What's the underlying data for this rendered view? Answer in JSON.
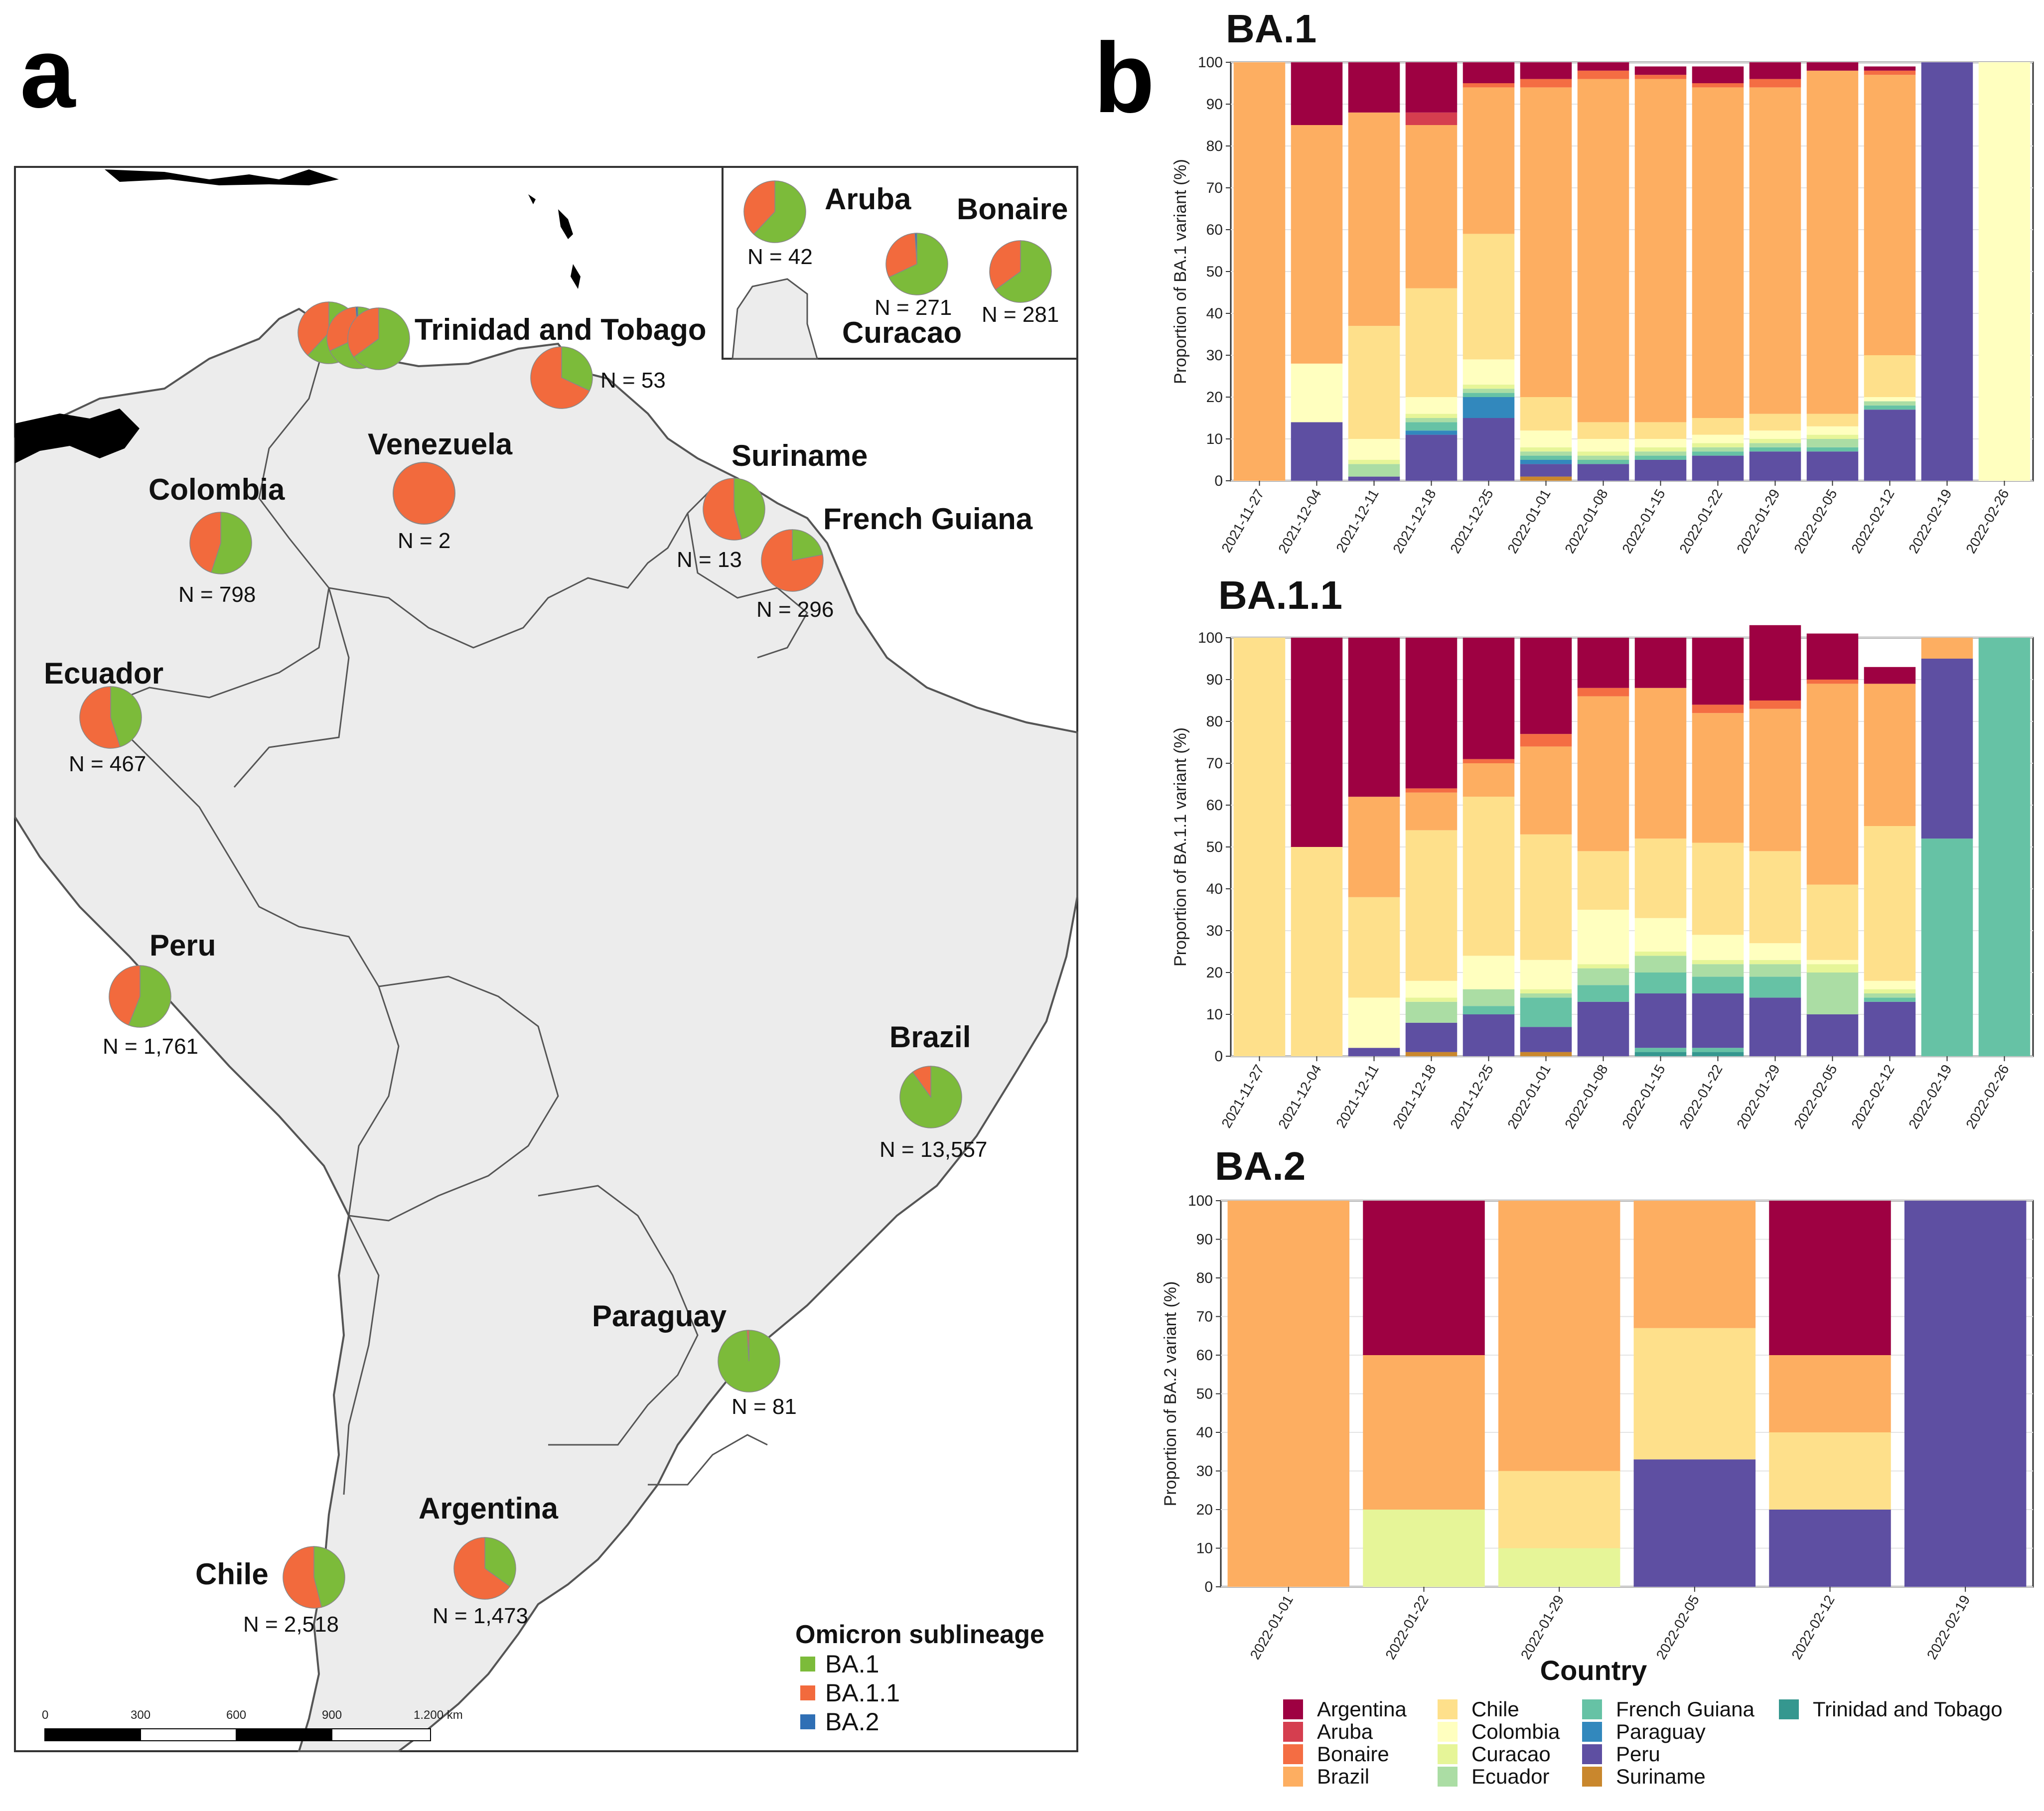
{
  "panel_a": {
    "letter": "a",
    "inset_countries": [
      {
        "name": "Aruba",
        "n_text": "N = 42",
        "ba1": 0.62,
        "ba11": 0.38,
        "ba2": 0.0
      },
      {
        "name": "Curacao",
        "n_text": "N = 271",
        "ba1": 0.68,
        "ba11": 0.31,
        "ba2": 0.01
      },
      {
        "name": "Bonaire",
        "n_text": "N = 281",
        "ba1": 0.65,
        "ba11": 0.35,
        "ba2": 0.0
      }
    ],
    "countries": [
      {
        "name": "Trinidad and Tobago",
        "n_text": "N = 53",
        "ba1": 0.32,
        "ba11": 0.68,
        "ba2": 0.0
      },
      {
        "name": "Venezuela",
        "n_text": "N = 2",
        "ba1": 0.0,
        "ba11": 1.0,
        "ba2": 0.0
      },
      {
        "name": "Colombia",
        "n_text": "N = 798",
        "ba1": 0.55,
        "ba11": 0.45,
        "ba2": 0.0
      },
      {
        "name": "Suriname",
        "n_text": "N = 13",
        "ba1": 0.46,
        "ba11": 0.54,
        "ba2": 0.0
      },
      {
        "name": "French Guiana",
        "n_text": "N = 296",
        "ba1": 0.22,
        "ba11": 0.78,
        "ba2": 0.0
      },
      {
        "name": "Ecuador",
        "n_text": "N = 467",
        "ba1": 0.45,
        "ba11": 0.55,
        "ba2": 0.0
      },
      {
        "name": "Peru",
        "n_text": "N = 1,761",
        "ba1": 0.56,
        "ba11": 0.44,
        "ba2": 0.0
      },
      {
        "name": "Brazil",
        "n_text": "N = 13,557",
        "ba1": 0.9,
        "ba11": 0.1,
        "ba2": 0.0
      },
      {
        "name": "Paraguay",
        "n_text": "N = 81",
        "ba1": 0.99,
        "ba11": 0.01,
        "ba2": 0.0
      },
      {
        "name": "Argentina",
        "n_text": "N = 1,473",
        "ba1": 0.35,
        "ba11": 0.65,
        "ba2": 0.0
      },
      {
        "name": "Chile",
        "n_text": "N = 2,518",
        "ba1": 0.46,
        "ba11": 0.54,
        "ba2": 0.0
      }
    ],
    "legend": {
      "title": "Omicron sublineage",
      "items": [
        {
          "label": "BA.1",
          "color": "#7cbb3a"
        },
        {
          "label": "BA.1.1",
          "color": "#f26a3d"
        },
        {
          "label": "BA.2",
          "color": "#2f6fb5"
        }
      ]
    },
    "scale_bar": {
      "labels": [
        "0",
        "300",
        "600",
        "900",
        "1.200 km"
      ]
    }
  },
  "panel_b": {
    "letter": "b",
    "x_axis_label": "Country",
    "legend": [
      {
        "label": "Argentina",
        "color": "#9e0142"
      },
      {
        "label": "Aruba",
        "color": "#d53e4f"
      },
      {
        "label": "Bonaire",
        "color": "#f46d43"
      },
      {
        "label": "Brazil",
        "color": "#fdae61"
      },
      {
        "label": "Chile",
        "color": "#fee08b"
      },
      {
        "label": "Colombia",
        "color": "#ffffbf"
      },
      {
        "label": "Curacao",
        "color": "#e6f598"
      },
      {
        "label": "Ecuador",
        "color": "#abdda4"
      },
      {
        "label": "French Guiana",
        "color": "#66c2a5"
      },
      {
        "label": "Paraguay",
        "color": "#3288bd"
      },
      {
        "label": "Peru",
        "color": "#5e4fa2"
      },
      {
        "label": "Suriname",
        "color": "#c9872d"
      },
      {
        "label": "Trinidad and Tobago",
        "color": "#35978f"
      }
    ]
  },
  "chart_data": [
    {
      "type": "bar",
      "stacked": true,
      "title": "BA.1",
      "ylabel": "Proportion of BA.1 variant (%)",
      "ylim": [
        0,
        100
      ],
      "yticks": [
        0,
        10,
        20,
        30,
        40,
        50,
        60,
        70,
        80,
        90,
        100
      ],
      "categories": [
        "2021-11-27",
        "2021-12-04",
        "2021-12-11",
        "2021-12-18",
        "2021-12-25",
        "2022-01-01",
        "2022-01-08",
        "2022-01-15",
        "2022-01-22",
        "2022-01-29",
        "2022-02-05",
        "2022-02-12",
        "2022-02-19",
        "2022-02-26"
      ],
      "series": [
        {
          "name": "Suriname",
          "values": [
            0,
            0,
            0,
            0,
            0,
            1,
            0,
            0,
            0,
            0,
            0,
            0,
            0,
            0
          ]
        },
        {
          "name": "Peru",
          "values": [
            0,
            14,
            1,
            11,
            15,
            3,
            4,
            5,
            6,
            7,
            7,
            17,
            100,
            0
          ]
        },
        {
          "name": "Paraguay",
          "values": [
            0,
            0,
            0,
            1,
            5,
            1,
            0,
            0,
            0,
            0,
            0,
            0,
            0,
            0
          ]
        },
        {
          "name": "French Guiana",
          "values": [
            0,
            0,
            0,
            2,
            1,
            1,
            1,
            1,
            1,
            1,
            1,
            1,
            0,
            0
          ]
        },
        {
          "name": "Ecuador",
          "values": [
            0,
            0,
            3,
            1,
            1,
            1,
            1,
            1,
            1,
            1,
            2,
            1,
            0,
            0
          ]
        },
        {
          "name": "Curacao",
          "values": [
            0,
            0,
            1,
            1,
            1,
            1,
            1,
            1,
            1,
            1,
            1,
            0,
            0,
            0
          ]
        },
        {
          "name": "Colombia",
          "values": [
            0,
            14,
            5,
            4,
            6,
            4,
            3,
            2,
            2,
            2,
            2,
            1,
            0,
            100
          ]
        },
        {
          "name": "Chile",
          "values": [
            0,
            0,
            27,
            26,
            30,
            8,
            4,
            4,
            4,
            4,
            3,
            10,
            0,
            0
          ]
        },
        {
          "name": "Brazil",
          "values": [
            100,
            57,
            51,
            39,
            35,
            74,
            82,
            82,
            79,
            78,
            82,
            67,
            0,
            0
          ]
        },
        {
          "name": "Bonaire",
          "values": [
            0,
            0,
            0,
            0,
            1,
            2,
            2,
            1,
            1,
            2,
            0,
            1,
            0,
            0
          ]
        },
        {
          "name": "Aruba",
          "values": [
            0,
            0,
            0,
            3,
            0,
            0,
            0,
            0,
            0,
            0,
            0,
            0,
            0,
            0
          ]
        },
        {
          "name": "Argentina",
          "values": [
            0,
            15,
            12,
            12,
            5,
            4,
            2,
            2,
            4,
            4,
            2,
            1,
            0,
            0
          ]
        }
      ]
    },
    {
      "type": "bar",
      "stacked": true,
      "title": "BA.1.1",
      "ylabel": "Proportion of BA.1.1 variant (%)",
      "ylim": [
        0,
        100
      ],
      "yticks": [
        0,
        10,
        20,
        30,
        40,
        50,
        60,
        70,
        80,
        90,
        100
      ],
      "categories": [
        "2021-11-27",
        "2021-12-04",
        "2021-12-11",
        "2021-12-18",
        "2021-12-25",
        "2022-01-01",
        "2022-01-08",
        "2022-01-15",
        "2022-01-22",
        "2022-01-29",
        "2022-02-05",
        "2022-02-12",
        "2022-02-19",
        "2022-02-26"
      ],
      "series": [
        {
          "name": "Suriname",
          "values": [
            0,
            0,
            0,
            1,
            0,
            1,
            0,
            0,
            0,
            0,
            0,
            0,
            0,
            0
          ]
        },
        {
          "name": "Trinidad and Tobago",
          "values": [
            0,
            0,
            0,
            0,
            0,
            0,
            0,
            1,
            1,
            0,
            0,
            0,
            0,
            0
          ]
        },
        {
          "name": "French Guiana",
          "values": [
            0,
            0,
            0,
            0,
            0,
            0,
            0,
            1,
            1,
            0,
            0,
            0,
            52,
            100
          ]
        },
        {
          "name": "Peru",
          "values": [
            0,
            0,
            2,
            7,
            10,
            6,
            13,
            13,
            13,
            14,
            10,
            13,
            43,
            0
          ]
        },
        {
          "name": "French Guiana",
          "values": [
            0,
            0,
            0,
            0,
            2,
            7,
            4,
            5,
            4,
            5,
            0,
            1,
            0,
            0
          ]
        },
        {
          "name": "Ecuador",
          "values": [
            0,
            0,
            0,
            5,
            4,
            1,
            4,
            4,
            3,
            3,
            10,
            1,
            0,
            0
          ]
        },
        {
          "name": "Curacao",
          "values": [
            0,
            0,
            0,
            1,
            0,
            1,
            1,
            1,
            1,
            1,
            2,
            1,
            0,
            0
          ]
        },
        {
          "name": "Colombia",
          "values": [
            0,
            0,
            12,
            4,
            8,
            7,
            13,
            8,
            6,
            4,
            1,
            2,
            0,
            0
          ]
        },
        {
          "name": "Chile",
          "values": [
            100,
            50,
            24,
            36,
            38,
            30,
            14,
            19,
            22,
            22,
            18,
            37,
            0,
            0
          ]
        },
        {
          "name": "Brazil",
          "values": [
            0,
            0,
            24,
            9,
            8,
            21,
            37,
            36,
            31,
            34,
            48,
            34,
            5,
            0
          ]
        },
        {
          "name": "Bonaire",
          "values": [
            0,
            0,
            0,
            1,
            1,
            3,
            2,
            0,
            2,
            2,
            1,
            0,
            0,
            0
          ]
        },
        {
          "name": "Argentina",
          "values": [
            0,
            50,
            38,
            36,
            29,
            23,
            12,
            12,
            16,
            18,
            11,
            4,
            0,
            0
          ]
        }
      ]
    },
    {
      "type": "bar",
      "stacked": true,
      "title": "BA.2",
      "ylabel": "Proportion of BA.2 variant (%)",
      "ylim": [
        0,
        100
      ],
      "yticks": [
        0,
        10,
        20,
        30,
        40,
        50,
        60,
        70,
        80,
        90,
        100
      ],
      "categories": [
        "2022-01-01",
        "2022-01-22",
        "2022-01-29",
        "2022-02-05",
        "2022-02-12",
        "2022-02-19"
      ],
      "series": [
        {
          "name": "Peru",
          "values": [
            0,
            0,
            0,
            33,
            20,
            100
          ]
        },
        {
          "name": "Curacao",
          "values": [
            0,
            20,
            10,
            0,
            0,
            0
          ]
        },
        {
          "name": "Chile",
          "values": [
            0,
            0,
            20,
            34,
            20,
            0
          ]
        },
        {
          "name": "Brazil",
          "values": [
            100,
            40,
            70,
            33,
            20,
            0
          ]
        },
        {
          "name": "Argentina",
          "values": [
            0,
            40,
            0,
            0,
            40,
            0
          ]
        }
      ]
    }
  ]
}
